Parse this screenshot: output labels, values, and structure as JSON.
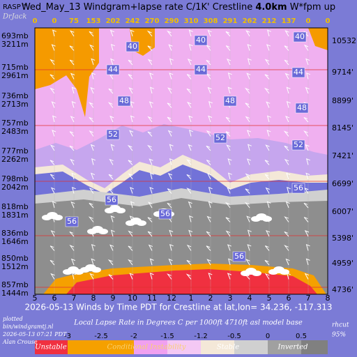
{
  "branding": {
    "rasp": "RASP™",
    "author": "DrJack"
  },
  "chart_data": {
    "type": "windgram",
    "title": "Wed_May_13 Windgram+lapse rate C/1K'  Crestline ",
    "title_bold": "4.0km",
    "title_end": "  W*fpm up",
    "categories": [
      "5",
      "6",
      "7",
      "8",
      "9",
      "10",
      "11",
      "12",
      "1",
      "2",
      "3",
      "4",
      "5",
      "6",
      "7",
      "8"
    ],
    "w_star": [
      0,
      0,
      75,
      153,
      202,
      242,
      270,
      290,
      310,
      308,
      291,
      262,
      212,
      137,
      0,
      0
    ],
    "levels": [
      {
        "pressure": "693mb",
        "height": "3211m",
        "feet": "10532'"
      },
      {
        "pressure": "715mb",
        "height": "2961m",
        "feet": "9714'"
      },
      {
        "pressure": "736mb",
        "height": "2713m",
        "feet": "8899'"
      },
      {
        "pressure": "757mb",
        "height": "2483m",
        "feet": "8145'"
      },
      {
        "pressure": "777mb",
        "height": "2262m",
        "feet": "7421'"
      },
      {
        "pressure": "798mb",
        "height": "2042m",
        "feet": "6699'"
      },
      {
        "pressure": "818mb",
        "height": "1831m",
        "feet": "6007'"
      },
      {
        "pressure": "836mb",
        "height": "1646m",
        "feet": "5398'"
      },
      {
        "pressure": "850mb",
        "height": "1512m",
        "feet": "4959'"
      },
      {
        "pressure": "857mb",
        "height": "1444m",
        "feet": "4736'"
      }
    ],
    "isotherm_labels": [
      "40",
      "40",
      "40",
      "44",
      "44",
      "44",
      "48",
      "48",
      "48",
      "52",
      "52",
      "52",
      "56",
      "56",
      "56",
      "56",
      "56"
    ],
    "xlabel": "2026-05-13 Winds by Time PDT for Crestline at lat,lon= 34.236, -117.313",
    "lapse_legend": {
      "title": "Local Lapse Rate in Degrees C per 1000ft  4710ft asl model base",
      "ticks": [
        -3,
        -2.5,
        -2,
        -1.5,
        -1.2,
        -0.5,
        0,
        0.5
      ],
      "classes": [
        "Unstable",
        "Conditional Instability",
        "Stable",
        "Inverted"
      ]
    }
  },
  "footer": {
    "lines": [
      "plotted",
      "bin/windgramtj.nl",
      "2026-05-13 07:21 PDT",
      "Alan Crouse"
    ],
    "rhcut": "rhcut",
    "rhcut_value": "95%"
  }
}
